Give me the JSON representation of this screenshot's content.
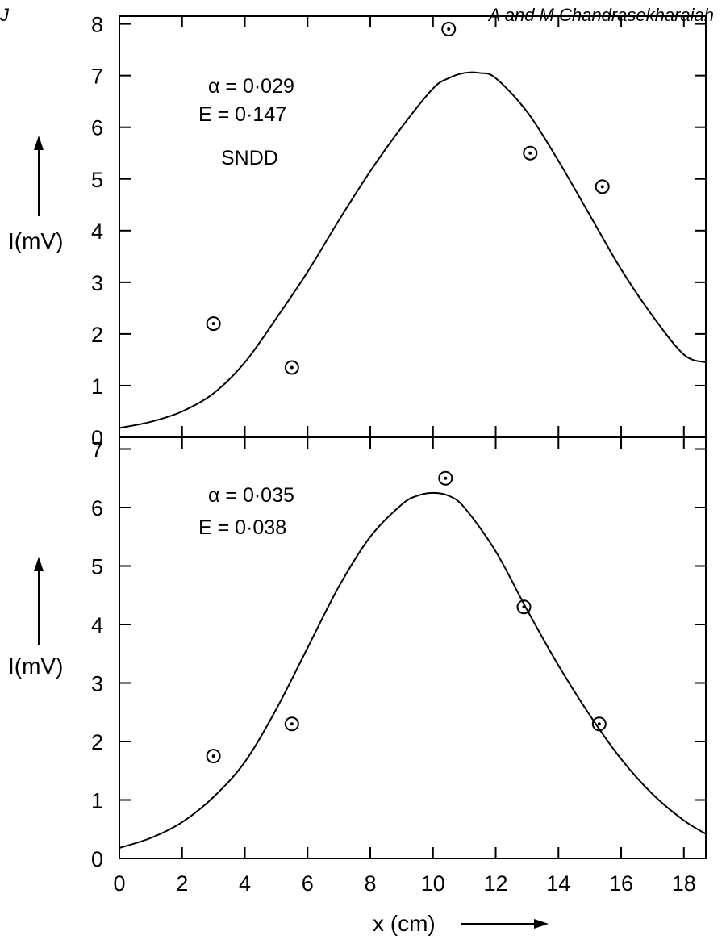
{
  "header": {
    "left_text": "J",
    "right_text": "A and M Chandrasekharaiah"
  },
  "chart_data": [
    {
      "type": "scatter",
      "panel": "top",
      "x_range": [
        0,
        18.7
      ],
      "y_range": [
        0,
        8.15
      ],
      "yticks": [
        0,
        1,
        2,
        3,
        4,
        5,
        6,
        7,
        8
      ],
      "ylabel": "I(mV)",
      "annotations": [
        "α = 0·029",
        "E = 0·147",
        "SNDD"
      ],
      "series": [
        {
          "type": "scatter",
          "marker": "circled-dot",
          "x": [
            3.0,
            5.5,
            10.5,
            13.1,
            15.4
          ],
          "y": [
            2.2,
            1.35,
            7.9,
            5.5,
            4.85
          ]
        },
        {
          "type": "line",
          "x": [
            0,
            1,
            2,
            3,
            4,
            5,
            6,
            7,
            8,
            9,
            10,
            10.5,
            11,
            11.5,
            12,
            13,
            14,
            15,
            16,
            17,
            18,
            18.7
          ],
          "y": [
            0.18,
            0.3,
            0.5,
            0.85,
            1.45,
            2.3,
            3.2,
            4.2,
            5.15,
            6.0,
            6.75,
            6.95,
            7.05,
            7.05,
            6.95,
            6.3,
            5.35,
            4.3,
            3.25,
            2.35,
            1.6,
            1.45
          ]
        }
      ]
    },
    {
      "type": "scatter",
      "panel": "bottom",
      "x_range": [
        0,
        18.7
      ],
      "y_range": [
        0,
        7.2
      ],
      "xticks": [
        0,
        2,
        4,
        6,
        8,
        10,
        12,
        14,
        16,
        18
      ],
      "yticks": [
        0,
        1,
        2,
        3,
        4,
        5,
        6,
        7
      ],
      "xlabel": "x (cm)",
      "ylabel": "I(mV)",
      "annotations": [
        "α = 0·035",
        "E = 0·038"
      ],
      "series": [
        {
          "type": "scatter",
          "marker": "circled-dot",
          "x": [
            3.0,
            5.5,
            10.4,
            12.9,
            15.3
          ],
          "y": [
            1.75,
            2.3,
            6.5,
            4.3,
            2.3
          ]
        },
        {
          "type": "line",
          "x": [
            0,
            1,
            2,
            3,
            4,
            5,
            6,
            7,
            8,
            9,
            9.5,
            10,
            10.5,
            11,
            12,
            13,
            14,
            15,
            16,
            17,
            18,
            18.7
          ],
          "y": [
            0.18,
            0.35,
            0.62,
            1.05,
            1.65,
            2.55,
            3.6,
            4.65,
            5.5,
            6.05,
            6.2,
            6.25,
            6.2,
            6.0,
            5.25,
            4.25,
            3.3,
            2.45,
            1.7,
            1.1,
            0.65,
            0.42
          ]
        }
      ]
    }
  ]
}
